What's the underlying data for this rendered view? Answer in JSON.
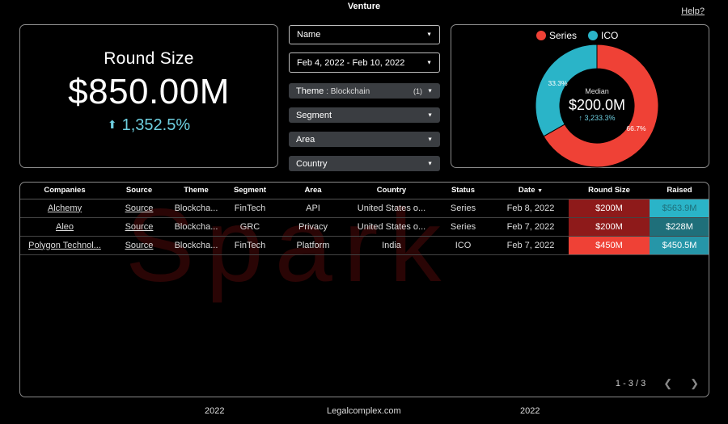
{
  "header": {
    "title": "Venture",
    "help": "Help?"
  },
  "kpi": {
    "title": "Round Size",
    "value": "$850.00M",
    "delta": "1,352.5%"
  },
  "filters": {
    "name": "Name",
    "date_range": "Feb 4, 2022 - Feb 10, 2022",
    "theme_label": "Theme",
    "theme_value": ": Blockchain",
    "theme_count": "(1)",
    "segment": "Segment",
    "area": "Area",
    "country": "Country"
  },
  "donut": {
    "legend": [
      {
        "name": "Series",
        "color": "#ef4136"
      },
      {
        "name": "ICO",
        "color": "#2ab4c8"
      }
    ],
    "center_label": "Median",
    "center_value": "$200.0M",
    "center_delta": "3,233.3%",
    "slices": [
      {
        "name": "Series",
        "value": 66.7,
        "label": "66.7%",
        "color": "#ef4136"
      },
      {
        "name": "ICO",
        "value": 33.3,
        "label": "33.3%",
        "color": "#2ab4c8"
      }
    ]
  },
  "table": {
    "watermark": "Spark",
    "columns": [
      "Companies",
      "Source",
      "Theme",
      "Segment",
      "Area",
      "Country",
      "Status",
      "Date",
      "Round Size",
      "Raised"
    ],
    "rows": [
      {
        "company": "Alchemy",
        "source": "Source",
        "theme": "Blockcha...",
        "segment": "FinTech",
        "area": "API",
        "country": "United States o...",
        "status": "Series",
        "date": "Feb 8, 2022",
        "round": "$200M",
        "raised": "$563.9M"
      },
      {
        "company": "Aleo",
        "source": "Source",
        "theme": "Blockcha...",
        "segment": "GRC",
        "area": "Privacy",
        "country": "United States o...",
        "status": "Series",
        "date": "Feb 7, 2022",
        "round": "$200M",
        "raised": "$228M"
      },
      {
        "company": "Polygon Technol...",
        "source": "Source",
        "theme": "Blockcha...",
        "segment": "FinTech",
        "area": "Platform",
        "country": "India",
        "status": "ICO",
        "date": "Feb 7, 2022",
        "round": "$450M",
        "raised": "$450.5M"
      }
    ],
    "heat_colors": {
      "round": [
        "#8e1a1a",
        "#8e1a1a",
        "#ef4136"
      ],
      "raised": [
        "#2ab4c8",
        "#1f6f7a",
        "#2696a8"
      ]
    },
    "pagination": "1 - 3 / 3"
  },
  "footer": {
    "left": "2022",
    "center": "Legalcomplex.com",
    "right": "2022"
  }
}
